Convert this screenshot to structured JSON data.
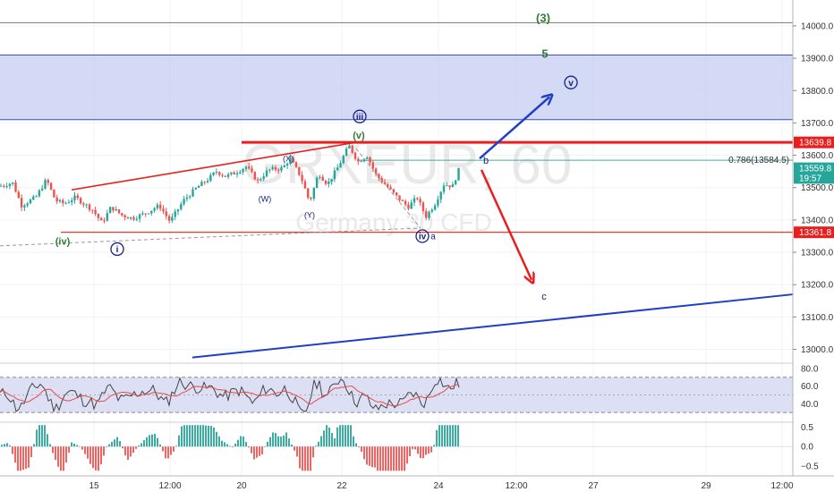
{
  "chart_data": {
    "type": "candlestick",
    "watermark": {
      "symbol": "GRXEUR, 60",
      "description": "Germany 30 CFD"
    },
    "price_axis": {
      "ylim": [
        12960,
        14080
      ],
      "ticks": [
        "13000.0",
        "13100.0",
        "13200.0",
        "13300.0",
        "13400.0",
        "13500.0",
        "13600.0",
        "13700.0",
        "13800.0",
        "13900.0",
        "14000.0"
      ]
    },
    "time_axis": {
      "ticks": [
        {
          "label": "15",
          "t": 105
        },
        {
          "label": "12:00",
          "t": 190
        },
        {
          "label": "20",
          "t": 270
        },
        {
          "label": "22",
          "t": 382
        },
        {
          "label": "24",
          "t": 490
        },
        {
          "label": "12:00",
          "t": 577
        },
        {
          "label": "27",
          "t": 663
        },
        {
          "label": "29",
          "t": 789
        },
        {
          "label": "12:00",
          "t": 874
        }
      ]
    },
    "price_badges": [
      {
        "label": "13639.8",
        "value": 13639.8,
        "color": "#e91e1e"
      },
      {
        "label": "13559.8",
        "value": 13559.8,
        "color": "#26a69a"
      },
      {
        "label": "19:57",
        "value": 13530,
        "color": "#26a69a"
      },
      {
        "label": "13361.8",
        "value": 13361.8,
        "color": "#e91e1e"
      }
    ],
    "fib_label": "0.786(13584.5)",
    "fib_value": 13584.5,
    "support_level": 13361.8,
    "resistance_level": 13639.8,
    "zone": [
      13710,
      13910
    ],
    "top_line": 14010,
    "candle_path": [
      [
        0,
        13505
      ],
      [
        14,
        13515
      ],
      [
        24,
        13445
      ],
      [
        40,
        13470
      ],
      [
        52,
        13525
      ],
      [
        62,
        13460
      ],
      [
        72,
        13450
      ],
      [
        84,
        13470
      ],
      [
        104,
        13430
      ],
      [
        114,
        13390
      ],
      [
        124,
        13440
      ],
      [
        136,
        13415
      ],
      [
        148,
        13405
      ],
      [
        162,
        13420
      ],
      [
        178,
        13445
      ],
      [
        190,
        13395
      ],
      [
        205,
        13460
      ],
      [
        220,
        13500
      ],
      [
        232,
        13525
      ],
      [
        242,
        13550
      ],
      [
        252,
        13535
      ],
      [
        262,
        13545
      ],
      [
        275,
        13565
      ],
      [
        288,
        13520
      ],
      [
        300,
        13555
      ],
      [
        316,
        13560
      ],
      [
        324,
        13590
      ],
      [
        336,
        13535
      ],
      [
        346,
        13455
      ],
      [
        356,
        13545
      ],
      [
        366,
        13510
      ],
      [
        378,
        13565
      ],
      [
        390,
        13630
      ],
      [
        400,
        13580
      ],
      [
        410,
        13600
      ],
      [
        420,
        13540
      ],
      [
        432,
        13505
      ],
      [
        444,
        13470
      ],
      [
        456,
        13440
      ],
      [
        466,
        13470
      ],
      [
        476,
        13410
      ],
      [
        486,
        13450
      ],
      [
        496,
        13510
      ],
      [
        506,
        13505
      ],
      [
        514,
        13565
      ]
    ],
    "wave_labels": [
      {
        "text": "(3)",
        "t": 607,
        "p": 14025,
        "color": "#2e7d32",
        "size": 13,
        "bold": true
      },
      {
        "text": "5",
        "t": 609,
        "p": 13915,
        "color": "#2e7d32",
        "size": 13,
        "bold": true
      },
      {
        "text": "v",
        "t": 638,
        "p": 13825,
        "color": "#1a237e",
        "size": 10,
        "circle": true
      },
      {
        "text": "iii",
        "t": 402,
        "p": 13720,
        "color": "#1a237e",
        "size": 10,
        "circle": true
      },
      {
        "text": "(v)",
        "t": 401,
        "p": 13662,
        "color": "#2e7d32",
        "size": 11,
        "bold": true
      },
      {
        "text": "(X)",
        "t": 322,
        "p": 13590,
        "color": "#1a237e",
        "size": 9
      },
      {
        "text": "(W)",
        "t": 296,
        "p": 13465,
        "color": "#1a237e",
        "size": 9
      },
      {
        "text": "(Y)",
        "t": 346,
        "p": 13415,
        "color": "#1a237e",
        "size": 9
      },
      {
        "text": "b",
        "t": 543,
        "p": 13585,
        "color": "#1a237e",
        "size": 11
      },
      {
        "text": "iv",
        "t": 472,
        "p": 13350,
        "color": "#1a237e",
        "size": 10,
        "circle": true
      },
      {
        "text": "a",
        "t": 484,
        "p": 13350,
        "color": "#1a237e",
        "size": 10
      },
      {
        "text": "(iv)",
        "t": 70,
        "p": 13335,
        "color": "#2e7d32",
        "size": 11,
        "bold": true
      },
      {
        "text": "i",
        "t": 131,
        "p": 13310,
        "color": "#1a237e",
        "size": 10,
        "circle": true
      },
      {
        "text": "c",
        "t": 608,
        "p": 13165,
        "color": "#1a237e",
        "size": 11
      }
    ],
    "rsi": {
      "ylim": [
        20,
        85
      ],
      "ticks": [
        "80.0",
        "60.0",
        "40.0"
      ],
      "bands": [
        30,
        70
      ],
      "midline": 50
    },
    "macd": {
      "ylim": [
        -0.75,
        0.6
      ],
      "ticks": [
        "0.5",
        "0.0",
        "−0.5"
      ]
    }
  }
}
